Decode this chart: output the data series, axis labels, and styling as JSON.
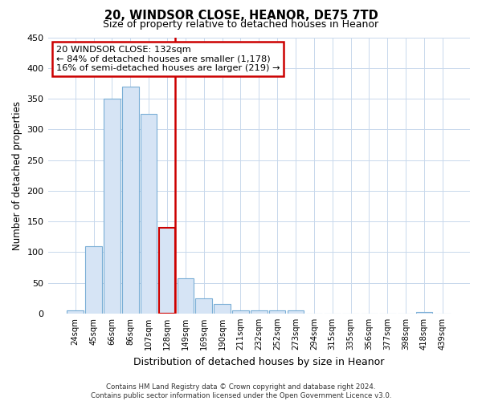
{
  "title": "20, WINDSOR CLOSE, HEANOR, DE75 7TD",
  "subtitle": "Size of property relative to detached houses in Heanor",
  "xlabel": "Distribution of detached houses by size in Heanor",
  "ylabel": "Number of detached properties",
  "bar_labels": [
    "24sqm",
    "45sqm",
    "66sqm",
    "86sqm",
    "107sqm",
    "128sqm",
    "149sqm",
    "169sqm",
    "190sqm",
    "211sqm",
    "232sqm",
    "252sqm",
    "273sqm",
    "294sqm",
    "315sqm",
    "335sqm",
    "356sqm",
    "377sqm",
    "398sqm",
    "418sqm",
    "439sqm"
  ],
  "bar_values": [
    5,
    110,
    350,
    370,
    325,
    140,
    57,
    25,
    15,
    5,
    5,
    5,
    5,
    0,
    0,
    0,
    0,
    0,
    0,
    2,
    0
  ],
  "bar_color": "#d6e4f5",
  "bar_edge_color": "#7aaed6",
  "highlight_bar_index": 5,
  "highlight_bar_edge_color": "#cc0000",
  "vline_color": "#cc0000",
  "ylim": [
    0,
    450
  ],
  "yticks": [
    0,
    50,
    100,
    150,
    200,
    250,
    300,
    350,
    400,
    450
  ],
  "annotation_title": "20 WINDSOR CLOSE: 132sqm",
  "annotation_line1": "← 84% of detached houses are smaller (1,178)",
  "annotation_line2": "16% of semi-detached houses are larger (219) →",
  "annotation_box_color": "#ffffff",
  "annotation_box_edge": "#cc0000",
  "footer_line1": "Contains HM Land Registry data © Crown copyright and database right 2024.",
  "footer_line2": "Contains public sector information licensed under the Open Government Licence v3.0.",
  "background_color": "#ffffff",
  "grid_color": "#c8d8ec"
}
